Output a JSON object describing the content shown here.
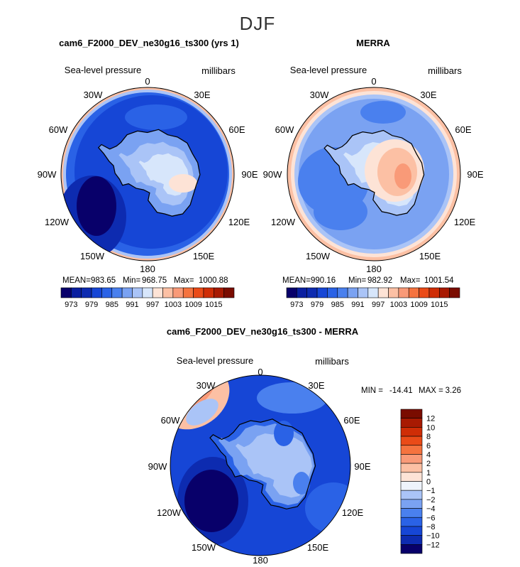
{
  "figure_title": "DJF",
  "colors": {
    "neg_scale": [
      "#08006a",
      "#0d2bb0",
      "#1646d6",
      "#2a62e6",
      "#4a80ee",
      "#7aa2f2",
      "#aac4f7",
      "#d7e6fb"
    ],
    "pos_scale": [
      "#fde3d6",
      "#fcc0a4",
      "#f99a78",
      "#f5733f",
      "#ea4b18",
      "#cf2d06",
      "#a81a02",
      "#7a0c00"
    ],
    "land_outline": "#000000"
  },
  "panels": [
    {
      "id": "model",
      "title": "cam6_F2000_DEV_ne30g16_ts300 (yrs 1)",
      "variable": "Sea-level pressure",
      "units": "millibars",
      "stats": {
        "mean_label": "MEAN=",
        "mean": "983.65",
        "min_label": "Min=",
        "min": "968.75",
        "max_label": "Max=",
        "max": "1000.88"
      },
      "colorbar_ticks": [
        "973",
        "979",
        "985",
        "991",
        "997",
        "1003",
        "1009",
        "1015"
      ],
      "colorbar_colors": [
        "#08006a",
        "#0a1fa0",
        "#0d2bb0",
        "#1646d6",
        "#2a62e6",
        "#4a80ee",
        "#7aa2f2",
        "#aac4f7",
        "#d7e6fb",
        "#fde3d6",
        "#fcc0a4",
        "#f99a78",
        "#f5733f",
        "#ea4b18",
        "#cf2d06",
        "#a81a02",
        "#7a0c00"
      ]
    },
    {
      "id": "obs",
      "title": "MERRA",
      "variable": "Sea-level pressure",
      "units": "millibars",
      "stats": {
        "mean_label": "MEAN=",
        "mean": "990.16",
        "min_label": "Min=",
        "min": "982.92",
        "max_label": "Max=",
        "max": "1001.54"
      },
      "colorbar_ticks": [
        "973",
        "979",
        "985",
        "991",
        "997",
        "1003",
        "1009",
        "1015"
      ],
      "colorbar_colors": [
        "#08006a",
        "#0a1fa0",
        "#0d2bb0",
        "#1646d6",
        "#2a62e6",
        "#4a80ee",
        "#7aa2f2",
        "#aac4f7",
        "#d7e6fb",
        "#fde3d6",
        "#fcc0a4",
        "#f99a78",
        "#f5733f",
        "#ea4b18",
        "#cf2d06",
        "#a81a02",
        "#7a0c00"
      ]
    },
    {
      "id": "diff",
      "title": "cam6_F2000_DEV_ne30g16_ts300 - MERRA",
      "variable": "Sea-level pressure",
      "units": "millibars",
      "stats": {
        "min_label": "MIN =",
        "min": "-14.41",
        "max_label": "MAX =",
        "max": "3.26"
      },
      "colorbar_ticks": [
        "12",
        "10",
        "8",
        "6",
        "4",
        "2",
        "1",
        "0",
        "−1",
        "−2",
        "−4",
        "−6",
        "−8",
        "−10",
        "−12"
      ],
      "colorbar_colors": [
        "#7a0c00",
        "#a81a02",
        "#cf2d06",
        "#ea4b18",
        "#f5733f",
        "#f99a78",
        "#fcc0a4",
        "#fde3d6",
        "#eef3fb",
        "#aac4f7",
        "#7aa2f2",
        "#4a80ee",
        "#2a62e6",
        "#1646d6",
        "#0d2bb0",
        "#08006a"
      ]
    }
  ],
  "longitude_labels": [
    "0",
    "30E",
    "60E",
    "90E",
    "120E",
    "150E",
    "180",
    "150W",
    "120W",
    "90W",
    "60W",
    "30W"
  ]
}
